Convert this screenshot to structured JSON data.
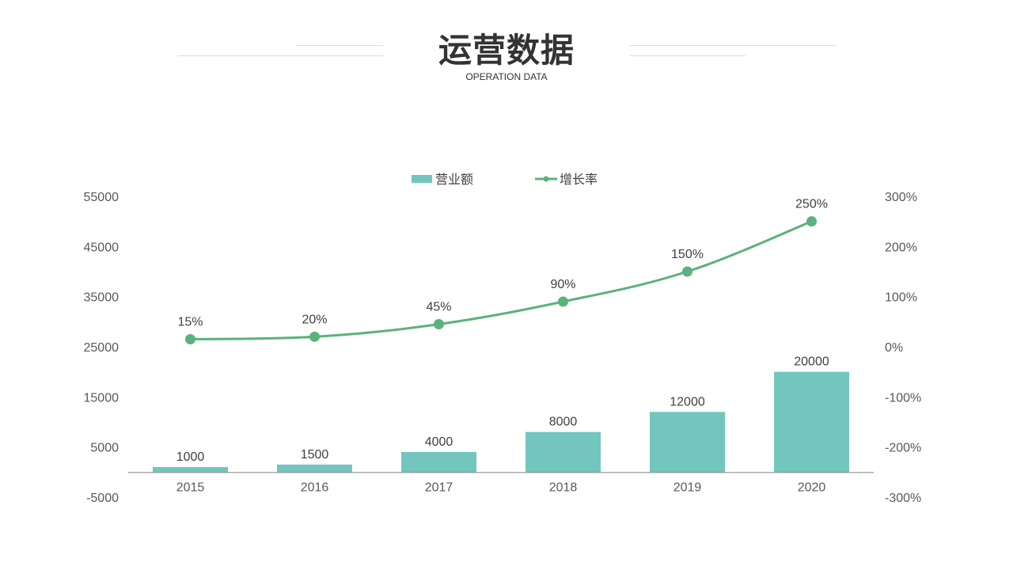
{
  "header": {
    "title": "运营数据",
    "subtitle": "OPERATION DATA"
  },
  "colors": {
    "bar": "#72C6BE",
    "line": "#5BB27C",
    "axis": "#808080",
    "text": "#595959"
  },
  "chart_data": {
    "type": "bar",
    "categories": [
      "2015",
      "2016",
      "2017",
      "2018",
      "2019",
      "2020"
    ],
    "series": [
      {
        "name": "营业额",
        "type": "bar",
        "axis": "left",
        "values": [
          1000,
          1500,
          4000,
          8000,
          12000,
          20000
        ],
        "labels": [
          "1000",
          "1500",
          "4000",
          "8000",
          "12000",
          "20000"
        ]
      },
      {
        "name": "增长率",
        "type": "line",
        "axis": "right",
        "values": [
          15,
          20,
          45,
          90,
          150,
          250
        ],
        "labels": [
          "15%",
          "20%",
          "45%",
          "90%",
          "150%",
          "250%"
        ]
      }
    ],
    "left_axis": {
      "ylim": [
        -5000,
        55000
      ],
      "ticks": [
        -5000,
        5000,
        15000,
        25000,
        35000,
        45000,
        55000
      ],
      "tick_labels": [
        "-5000",
        "5000",
        "15000",
        "25000",
        "35000",
        "45000",
        "55000"
      ]
    },
    "right_axis": {
      "ylim": [
        -300,
        300
      ],
      "ticks": [
        -300,
        -200,
        -100,
        0,
        100,
        200,
        300
      ],
      "tick_labels": [
        "-300%",
        "-200%",
        "-100%",
        "0%",
        "100%",
        "200%",
        "300%"
      ]
    },
    "legend": "top-center",
    "grid": false,
    "title": "",
    "xlabel": "",
    "ylabel": ""
  }
}
